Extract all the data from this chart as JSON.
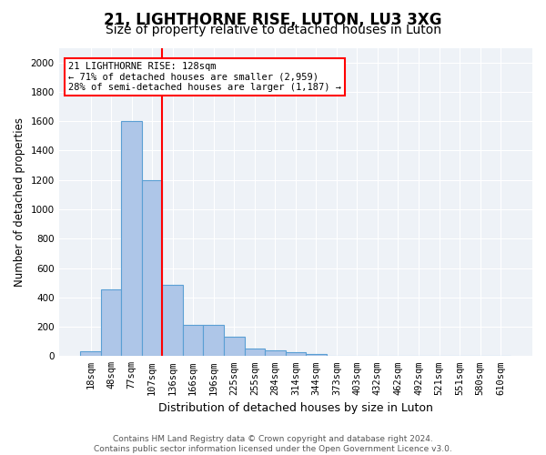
{
  "title": "21, LIGHTHORNE RISE, LUTON, LU3 3XG",
  "subtitle": "Size of property relative to detached houses in Luton",
  "xlabel": "Distribution of detached houses by size in Luton",
  "ylabel": "Number of detached properties",
  "bar_values": [
    35,
    455,
    1600,
    1200,
    485,
    210,
    210,
    130,
    50,
    40,
    25,
    15,
    0,
    0,
    0,
    0,
    0,
    0,
    0,
    0,
    0
  ],
  "bar_labels": [
    "18sqm",
    "48sqm",
    "77sqm",
    "107sqm",
    "136sqm",
    "166sqm",
    "196sqm",
    "225sqm",
    "255sqm",
    "284sqm",
    "314sqm",
    "344sqm",
    "373sqm",
    "403sqm",
    "432sqm",
    "462sqm",
    "492sqm",
    "521sqm",
    "551sqm",
    "580sqm",
    "610sqm"
  ],
  "bar_color": "#aec6e8",
  "bar_edgecolor": "#5a9fd4",
  "vline_color": "red",
  "annotation_text": "21 LIGHTHORNE RISE: 128sqm\n← 71% of detached houses are smaller (2,959)\n28% of semi-detached houses are larger (1,187) →",
  "annotation_box_color": "white",
  "annotation_box_edgecolor": "red",
  "ylim": [
    0,
    2100
  ],
  "yticks": [
    0,
    200,
    400,
    600,
    800,
    1000,
    1200,
    1400,
    1600,
    1800,
    2000
  ],
  "background_color": "#eef2f7",
  "footer_text": "Contains HM Land Registry data © Crown copyright and database right 2024.\nContains public sector information licensed under the Open Government Licence v3.0.",
  "title_fontsize": 12,
  "subtitle_fontsize": 10,
  "xlabel_fontsize": 9,
  "ylabel_fontsize": 8.5,
  "tick_fontsize": 7.5,
  "annotation_fontsize": 7.5,
  "footer_fontsize": 6.5
}
